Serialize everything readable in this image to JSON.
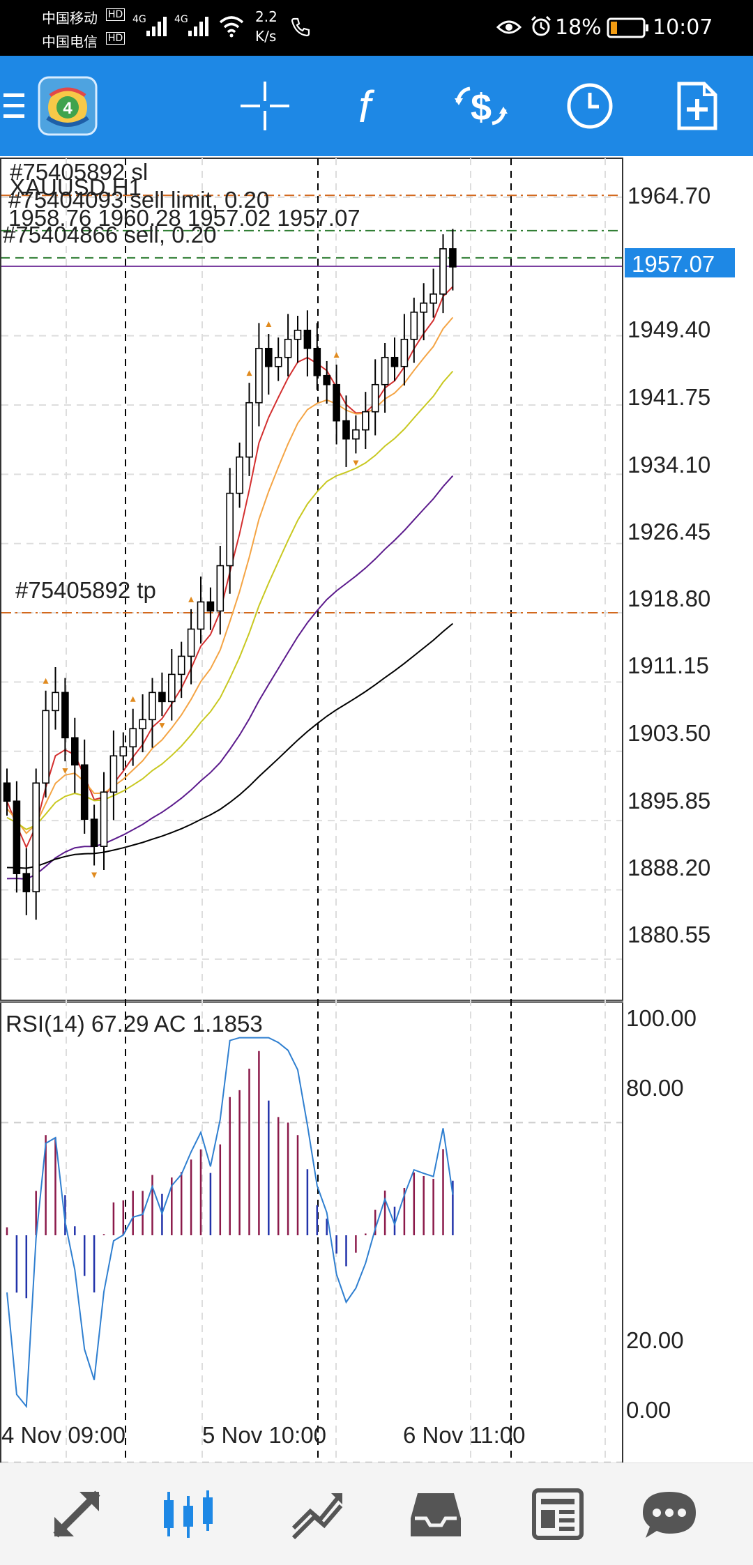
{
  "status_bar": {
    "carrier1": "中国移动",
    "carrier2": "中国电信",
    "hd_badge": "HD",
    "network": "4G",
    "speed_value": "2.2",
    "speed_unit": "K/s",
    "battery": "18%",
    "time": "10:07"
  },
  "chart": {
    "symbol_timeframe": "XAUUSD,H1",
    "ohlc": "1958.76 1960.28 1957.02 1957.07",
    "current_price": "1957.07",
    "order_labels": {
      "sl": "#75405892 sl",
      "sell_limit": "#75404093 sell limit, 0.20",
      "sell": "#75404866 sell, 0.20",
      "tp": "#75405892 tp"
    },
    "price_ticks": [
      "1964.70",
      "1949.40",
      "1941.75",
      "1934.10",
      "1926.45",
      "1918.80",
      "1911.15",
      "1903.50",
      "1895.85",
      "1888.20",
      "1880.55"
    ],
    "rsi_label": "RSI(14) 67.29 AC 1.1853",
    "rsi_ticks": [
      "100.00",
      "80.00",
      "20.00",
      "0.00"
    ],
    "time_labels": [
      "4 Nov 09:00",
      "5 Nov 10:00",
      "6 Nov 11:00"
    ],
    "colors": {
      "up": "#000000",
      "down": "#000000",
      "ma_fast": "#d32f2f",
      "ma_mid": "#f4a444",
      "ma_slow": "#c8c820",
      "ma_purple": "#5b1a8c",
      "ma_black": "#000000",
      "rsi": "#2f7fd0",
      "ac_up": "#8b1a4a",
      "ac_down": "#2233aa",
      "price_tag": "#1e88e5"
    }
  },
  "chart_data": {
    "type": "candlestick",
    "symbol": "XAUUSD",
    "timeframe": "H1",
    "ylim": [
      1876,
      1969
    ],
    "candles_close": [
      1898,
      1890,
      1888,
      1900,
      1908,
      1910,
      1905,
      1902,
      1896,
      1893,
      1899,
      1903,
      1904,
      1906,
      1907,
      1910,
      1909,
      1912,
      1914,
      1917,
      1920,
      1919,
      1924,
      1932,
      1936,
      1942,
      1948,
      1946,
      1947,
      1949,
      1950,
      1948,
      1945,
      1944,
      1940,
      1938,
      1939,
      1941,
      1944,
      1947,
      1946,
      1949,
      1952,
      1953,
      1954,
      1959,
      1957
    ],
    "levels": {
      "sl": 1964.9,
      "sell_limit": 1961.0,
      "sell": 1958.0,
      "current": 1957.07,
      "tp": 1918.8
    },
    "rsi": {
      "value": 67.29,
      "ylim": [
        0,
        100
      ]
    },
    "ac": {
      "value": 1.1853
    }
  },
  "toolbar": {
    "items": [
      "menu-icon",
      "app-logo",
      "crosshair-icon",
      "indicators-icon",
      "trade-icon",
      "period-icon",
      "new-order-icon"
    ]
  },
  "bottom_nav": {
    "items": [
      "quotes-icon",
      "chart-icon",
      "trade-icon",
      "history-icon",
      "news-icon",
      "chat-icon"
    ]
  }
}
